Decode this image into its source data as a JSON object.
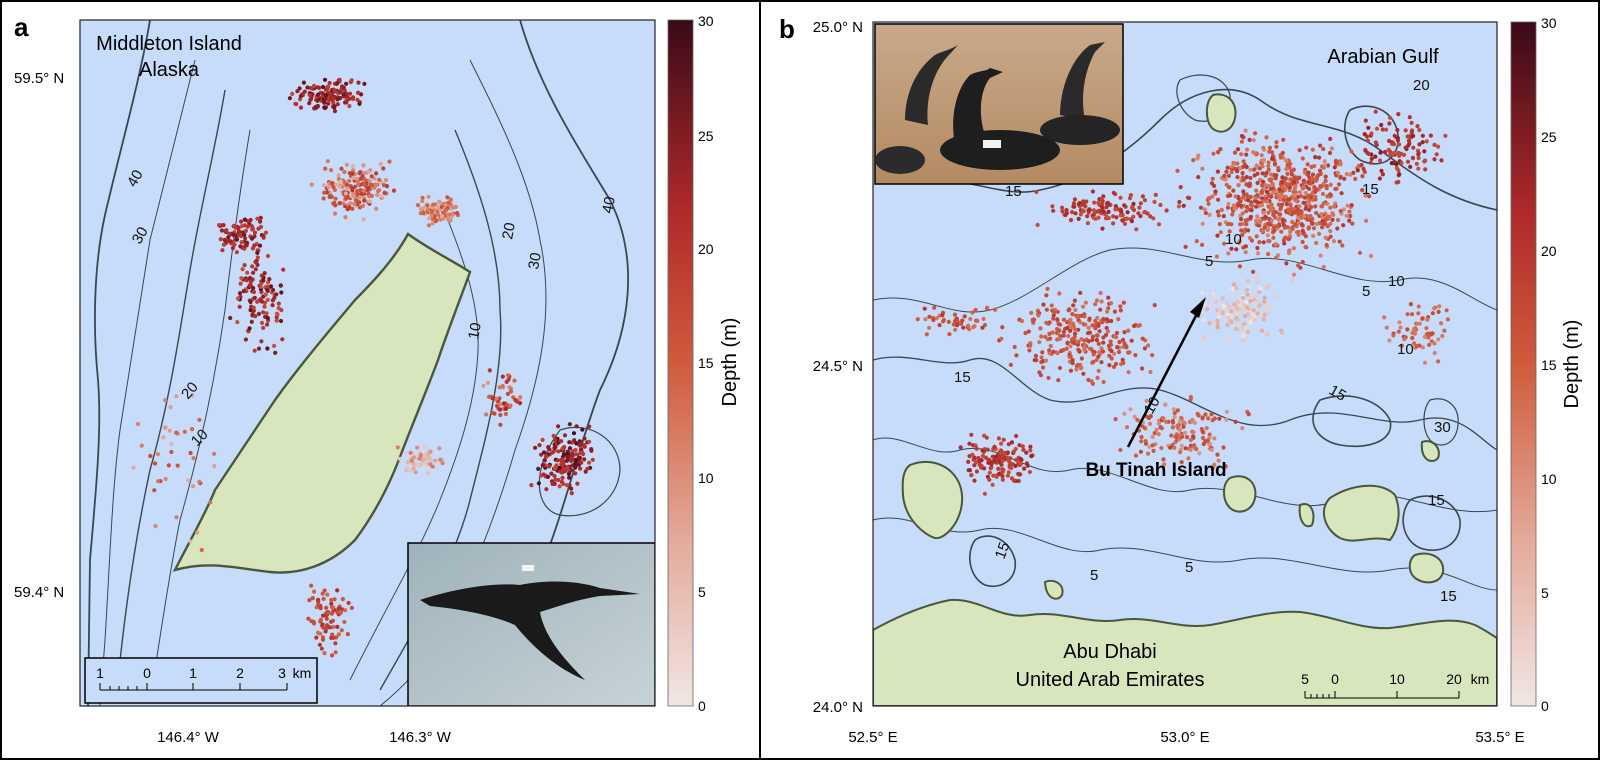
{
  "figure": {
    "panel_a": {
      "letter": "a",
      "place_title": "Middleton Island",
      "place_subtitle": "Alaska",
      "lat_ticks": [
        "59.5° N",
        "59.4° N"
      ],
      "lon_ticks": [
        "146.4° W",
        "146.3° W"
      ],
      "contour_labels": [
        "40",
        "30",
        "20",
        "10",
        "10",
        "20",
        "30",
        "40"
      ],
      "scale_bar": {
        "ticks": [
          "1",
          "0",
          "1",
          "2",
          "3"
        ],
        "unit": "km"
      },
      "inset_photo": "cormorant-in-flight-photo",
      "colorbar": {
        "label": "Depth (m)",
        "ticks": [
          "30",
          "25",
          "20",
          "15",
          "10",
          "5",
          "0"
        ]
      }
    },
    "panel_b": {
      "letter": "b",
      "place_water": "Arabian Gulf",
      "island_label": "Bu Tinah Island",
      "coast_label_1": "Abu Dhabi",
      "coast_label_2": "United Arab Emirates",
      "lat_ticks": [
        "25.0° N",
        "24.5° N",
        "24.0° N"
      ],
      "lon_ticks": [
        "52.5° E",
        "53.0° E",
        "53.5° E"
      ],
      "contour_labels": [
        "20",
        "15",
        "10",
        "5",
        "10",
        "5",
        "10",
        "15",
        "15",
        "30",
        "15",
        "15",
        "5",
        "5",
        "15",
        "10",
        "15"
      ],
      "scale_bar": {
        "ticks": [
          "5",
          "0",
          "10",
          "20"
        ],
        "unit": "km"
      },
      "inset_photo": "cormorants-colony-photo",
      "colorbar": {
        "label": "Depth (m)",
        "ticks": [
          "30",
          "25",
          "20",
          "15",
          "10",
          "5",
          "0"
        ]
      }
    },
    "colors": {
      "water": "#c6dcfa",
      "land": "#d8e6bd",
      "coast_stroke": "#49573a",
      "contour": "#3a4652",
      "depth_shallow": "#f1e6e4",
      "depth_mid": "#cf5b3c",
      "depth_deep": "#3a0a18"
    }
  }
}
